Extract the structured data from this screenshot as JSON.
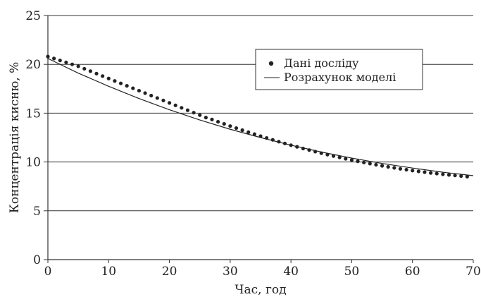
{
  "chart_data": {
    "type": "scatter",
    "title": "",
    "xlabel": "Час, год",
    "ylabel": "Концентрація кисню, %",
    "xlim": [
      0,
      70
    ],
    "ylim": [
      0,
      25
    ],
    "x_ticks": [
      "0",
      "10",
      "20",
      "30",
      "40",
      "50",
      "60",
      "70"
    ],
    "y_ticks": [
      "0",
      "5",
      "10",
      "15",
      "20",
      "25"
    ],
    "grid": "horizontal",
    "legend_position": "upper-right",
    "series": [
      {
        "name": "Дані досліду",
        "kind": "points",
        "color": "#222222",
        "x": [
          0,
          1,
          2,
          3,
          4,
          5,
          6,
          7,
          8,
          9,
          10,
          11,
          12,
          13,
          14,
          15,
          16,
          17,
          18,
          19,
          20,
          21,
          22,
          23,
          24,
          25,
          26,
          27,
          28,
          29,
          30,
          31,
          32,
          33,
          34,
          35,
          36,
          37,
          38,
          39,
          40,
          41,
          42,
          43,
          44,
          45,
          46,
          47,
          48,
          49,
          50,
          51,
          52,
          53,
          54,
          55,
          56,
          57,
          58,
          59,
          60,
          61,
          62,
          63,
          64,
          65,
          66,
          67,
          68,
          69
        ],
        "y": [
          20.8,
          20.6,
          20.4,
          20.2,
          20.0,
          19.8,
          19.55,
          19.3,
          19.05,
          18.8,
          18.55,
          18.3,
          18.05,
          17.8,
          17.55,
          17.3,
          17.05,
          16.8,
          16.55,
          16.3,
          16.05,
          15.8,
          15.55,
          15.3,
          15.05,
          14.8,
          14.55,
          14.35,
          14.12,
          13.9,
          13.68,
          13.47,
          13.26,
          13.05,
          12.85,
          12.65,
          12.46,
          12.27,
          12.08,
          11.9,
          11.72,
          11.55,
          11.38,
          11.22,
          11.06,
          10.9,
          10.75,
          10.61,
          10.47,
          10.33,
          10.2,
          10.07,
          9.95,
          9.83,
          9.72,
          9.61,
          9.5,
          9.4,
          9.3,
          9.21,
          9.12,
          9.04,
          8.96,
          8.88,
          8.81,
          8.74,
          8.68,
          8.62,
          8.56,
          8.5
        ]
      },
      {
        "name": "Розрахунок моделі",
        "kind": "line",
        "color": "#222222",
        "x": [
          0,
          5,
          10,
          15,
          20,
          25,
          30,
          35,
          40,
          45,
          50,
          55,
          60,
          65,
          70
        ],
        "y": [
          20.6,
          19.1,
          17.75,
          16.5,
          15.35,
          14.3,
          13.35,
          12.5,
          11.72,
          11.02,
          10.4,
          9.85,
          9.38,
          8.95,
          8.6
        ]
      }
    ]
  }
}
